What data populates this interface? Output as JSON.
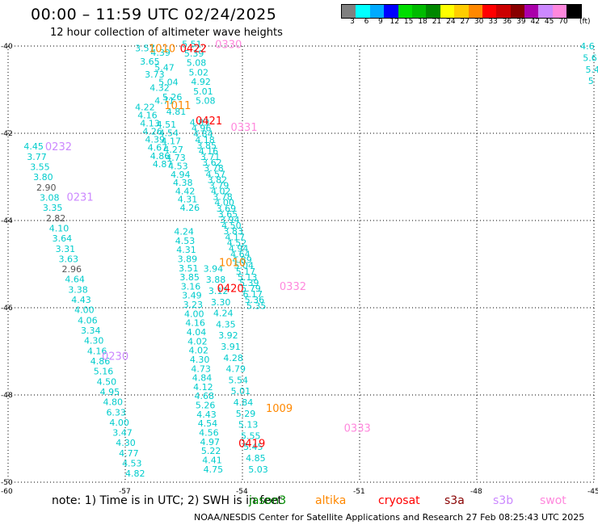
{
  "header": {
    "title": "00:00 – 11:59 UTC 02/24/2025",
    "subtitle": "12 hour collection of altimeter wave heights"
  },
  "legend": {
    "unit": "(ft)",
    "bins": [
      {
        "label": "3",
        "color": "#808080"
      },
      {
        "label": "6",
        "color": "#00ffff"
      },
      {
        "label": "9",
        "color": "#00aaff"
      },
      {
        "label": "12",
        "color": "#0000ff"
      },
      {
        "label": "15",
        "color": "#00dd00"
      },
      {
        "label": "18",
        "color": "#00bb00"
      },
      {
        "label": "21",
        "color": "#008800"
      },
      {
        "label": "24",
        "color": "#ffff00"
      },
      {
        "label": "27",
        "color": "#ffcc00"
      },
      {
        "label": "30",
        "color": "#ff8800"
      },
      {
        "label": "33",
        "color": "#ff0000"
      },
      {
        "label": "36",
        "color": "#cc0000"
      },
      {
        "label": "39",
        "color": "#880000"
      },
      {
        "label": "42",
        "color": "#aa00aa"
      },
      {
        "label": "45",
        "color": "#cc88ff"
      },
      {
        "label": "70",
        "color": "#ff88dd"
      },
      {
        "label": "",
        "color": "#000000"
      }
    ]
  },
  "map": {
    "lat_labels": [
      "-40",
      "-42",
      "-44",
      "-46",
      "-48",
      "-50"
    ],
    "lon_labels": [
      "-60",
      "-57",
      "-54",
      "-51",
      "-48",
      "-45"
    ],
    "lat_range": [
      -50,
      -40
    ],
    "lon_range": [
      -60,
      -45
    ],
    "passes": [
      {
        "label": "0422",
        "color": "#ff0000",
        "lon": -55.6,
        "lat": -40.05
      },
      {
        "label": "0330",
        "color": "#ff88dd",
        "lon": -54.7,
        "lat": -39.95
      },
      {
        "label": "1010",
        "color": "#ff8800",
        "lon": -56.4,
        "lat": -40.05
      },
      {
        "label": "1011",
        "color": "#ff8800",
        "lon": -56.0,
        "lat": -41.35
      },
      {
        "label": "0421",
        "color": "#ff0000",
        "lon": -55.2,
        "lat": -41.7
      },
      {
        "label": "0331",
        "color": "#ff88dd",
        "lon": -54.3,
        "lat": -41.85
      },
      {
        "label": "0232",
        "color": "#cc88ff",
        "lon": -59.05,
        "lat": -42.3
      },
      {
        "label": "0231",
        "color": "#cc88ff",
        "lon": -58.5,
        "lat": -43.45
      },
      {
        "label": "1010",
        "color": "#ff8800",
        "lon": -54.6,
        "lat": -44.95
      },
      {
        "label": "0420",
        "color": "#ff0000",
        "lon": -54.65,
        "lat": -45.55
      },
      {
        "label": "0332",
        "color": "#ff88dd",
        "lon": -53.05,
        "lat": -45.5
      },
      {
        "label": "0230",
        "color": "#cc88ff",
        "lon": -57.6,
        "lat": -47.1
      },
      {
        "label": "1009",
        "color": "#ff8800",
        "lon": -53.4,
        "lat": -48.3
      },
      {
        "label": "0333",
        "color": "#ff88dd",
        "lon": -51.4,
        "lat": -48.75
      },
      {
        "label": "0419",
        "color": "#ff0000",
        "lon": -54.1,
        "lat": -49.1
      }
    ],
    "tracks": [
      {
        "color": "#00cccc",
        "x0": -56.75,
        "lat0": -40.05,
        "dx": 0.5,
        "dlat": -1.2,
        "values": [
          "3.57",
          "3.65",
          "3.73",
          "4.32",
          "4.71"
        ]
      },
      {
        "color": "#00cccc",
        "x0": -56.35,
        "lat0": -40.15,
        "dx": 0.4,
        "dlat": -1.35,
        "values": [
          "4.39",
          "5.47",
          "5.04",
          "5.26",
          "4.81"
        ]
      },
      {
        "color": "#00cccc",
        "x0": -55.55,
        "lat0": -39.95,
        "dx": 0.35,
        "dlat": -1.3,
        "values": [
          "5.51",
          "5.39",
          "5.08",
          "5.02",
          "4.92",
          "5.01",
          "5.08"
        ]
      },
      {
        "color": "#00cccc",
        "x0": -56.75,
        "lat0": -41.4,
        "dx": 0.45,
        "dlat": -1.3,
        "values": [
          "4.22",
          "4.16",
          "4.13",
          "4.26",
          "4.39",
          "4.67",
          "4.86",
          "4.87"
        ]
      },
      {
        "color": "#00cccc",
        "x0": -56.2,
        "lat0": -41.8,
        "dx": 0.6,
        "dlat": -1.9,
        "values": [
          "4.51",
          "4.54",
          "4.17",
          "4.27",
          "4.73",
          "4.53",
          "4.94",
          "4.38",
          "4.42",
          "4.31",
          "4.26"
        ]
      },
      {
        "color": "#00cccc",
        "x0": -55.35,
        "lat0": -41.75,
        "dx": 1.45,
        "dlat": -4.2,
        "values": [
          "4.83",
          "4.96",
          "4.84",
          "4.18",
          "3.85",
          "4.16",
          "3.71",
          "3.62",
          "3.78",
          "4.57",
          "3.82",
          "3.79",
          "4.02",
          "3.78",
          "4.00",
          "3.69",
          "3.65",
          "3.94",
          "4.50",
          "3.83",
          "4.17",
          "4.52",
          "4.94",
          "4.64",
          "4.89",
          "5.04",
          "5.17",
          "5.13",
          "5.39",
          "5.79",
          "6.17",
          "5.36",
          "5.35"
        ]
      },
      {
        "color": "#00cccc",
        "x0": -59.6,
        "lat0": -42.3,
        "dx": 2.6,
        "dlat": -7.5,
        "values": [
          "4.45",
          "3.77",
          "3.55",
          "3.80",
          "2.90",
          "3.08",
          "3.35",
          "2.82",
          "4.10",
          "3.64",
          "3.31",
          "3.63",
          "2.96",
          "4.64",
          "3.38",
          "4.43",
          "4.00",
          "4.06",
          "3.34",
          "4.30",
          "4.16",
          "4.86",
          "5.16",
          "4.50",
          "4.95",
          "4.80",
          "6.33",
          "4.00",
          "3.47",
          "4.30",
          "4.77",
          "4.53",
          "4.82"
        ]
      },
      {
        "color": "#00cccc",
        "x0": -55.75,
        "lat0": -44.25,
        "dx": 0.75,
        "dlat": -5.45,
        "values": [
          "4.24",
          "4.53",
          "4.31",
          "3.89",
          "3.51",
          "3.85",
          "3.16",
          "3.49",
          "3.23",
          "4.00",
          "4.16",
          "4.04",
          "4.02",
          "4.02",
          "4.30",
          "4.73",
          "4.84",
          "4.12",
          "4.68",
          "5.26",
          "4.43",
          "4.54",
          "4.56",
          "4.97",
          "5.22",
          "4.41",
          "4.75"
        ]
      },
      {
        "color": "#00cccc",
        "x0": -55.0,
        "lat0": -45.1,
        "dx": 1.15,
        "dlat": -4.6,
        "values": [
          "3.94",
          "3.88",
          "3.12",
          "3.30",
          "4.24",
          "4.35",
          "3.92",
          "3.91",
          "4.28",
          "4.79",
          "5.54",
          "5.01",
          "4.84",
          "5.29",
          "5.13",
          "5.55",
          "5.45",
          "4.85",
          "5.03"
        ]
      },
      {
        "color": "#00cccc",
        "x0": -45.35,
        "lat0": -40.0,
        "dx": 0.2,
        "dlat": -0.8,
        "values": [
          "4.6",
          "5.6",
          "5.4",
          "5"
        ]
      }
    ]
  },
  "footer": {
    "note": "note:  1) Time is in UTC; 2) SWH is in feet",
    "satellites": [
      {
        "name": "jason3",
        "color": "#008800"
      },
      {
        "name": "altika",
        "color": "#ff8800"
      },
      {
        "name": "cryosat",
        "color": "#ff0000"
      },
      {
        "name": "s3a",
        "color": "#880000"
      },
      {
        "name": "s3b",
        "color": "#cc88ff"
      },
      {
        "name": "swot",
        "color": "#ff88dd"
      }
    ],
    "credit": "NOAA/NESDIS Center for Satellite Applications and Research     27 Feb 08:25:43 UTC 2025"
  }
}
